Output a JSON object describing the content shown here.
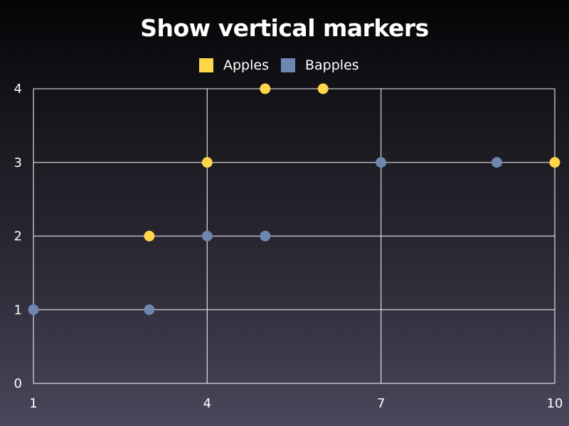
{
  "chart_data": {
    "type": "scatter",
    "title": "Show vertical markers",
    "xlabel": "",
    "ylabel": "",
    "xlim": [
      1,
      10
    ],
    "ylim": [
      0,
      4
    ],
    "x_ticks": [
      1,
      4,
      7,
      10
    ],
    "y_ticks": [
      0,
      1,
      2,
      3,
      4
    ],
    "grid": true,
    "legend_position": "top",
    "series": [
      {
        "name": "Apples",
        "color": "#ffd54a",
        "points": [
          {
            "x": 3,
            "y": 2
          },
          {
            "x": 4,
            "y": 3
          },
          {
            "x": 5,
            "y": 4
          },
          {
            "x": 6,
            "y": 4
          },
          {
            "x": 10,
            "y": 3
          }
        ]
      },
      {
        "name": "Bapples",
        "color": "#6f86b0",
        "points": [
          {
            "x": 1,
            "y": 1
          },
          {
            "x": 3,
            "y": 1
          },
          {
            "x": 4,
            "y": 2
          },
          {
            "x": 5,
            "y": 2
          },
          {
            "x": 7,
            "y": 3
          },
          {
            "x": 9,
            "y": 3
          }
        ]
      }
    ]
  }
}
